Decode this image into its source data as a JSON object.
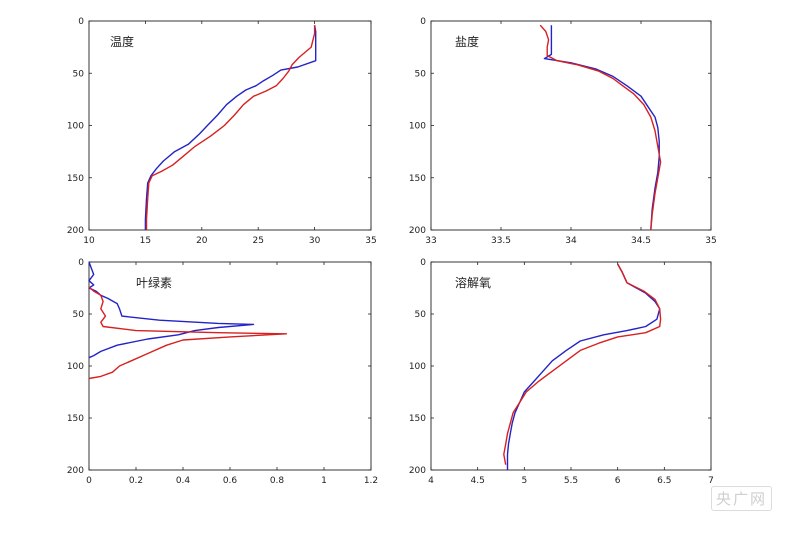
{
  "chart_data": [
    {
      "type": "line",
      "title": "温度",
      "xlim": [
        10,
        35
      ],
      "ylim": [
        0,
        200
      ],
      "y_inverted": true,
      "xticks": [
        "10",
        "15",
        "20",
        "25",
        "30",
        "35"
      ],
      "yticks": [
        "0",
        "50",
        "100",
        "150",
        "200"
      ],
      "series": [
        {
          "color": "#2323c8",
          "points": [
            [
              30.0,
              4
            ],
            [
              30.1,
              10
            ],
            [
              30.1,
              38
            ],
            [
              28.5,
              44
            ],
            [
              27.0,
              47
            ],
            [
              26.3,
              52
            ],
            [
              25.5,
              57
            ],
            [
              24.8,
              62
            ],
            [
              23.9,
              66
            ],
            [
              23.1,
              72
            ],
            [
              22.2,
              80
            ],
            [
              21.4,
              90
            ],
            [
              20.5,
              100
            ],
            [
              19.8,
              108
            ],
            [
              18.8,
              118
            ],
            [
              17.6,
              125
            ],
            [
              16.6,
              134
            ],
            [
              16.0,
              141
            ],
            [
              15.5,
              148
            ],
            [
              15.2,
              155
            ],
            [
              15.1,
              170
            ],
            [
              15.0,
              190
            ],
            [
              15.0,
              200
            ]
          ]
        },
        {
          "color": "#d82020",
          "points": [
            [
              30.0,
              4
            ],
            [
              30.0,
              12
            ],
            [
              29.7,
              25
            ],
            [
              28.6,
              35
            ],
            [
              28.0,
              42
            ],
            [
              27.7,
              48
            ],
            [
              27.2,
              55
            ],
            [
              26.6,
              62
            ],
            [
              25.7,
              67
            ],
            [
              24.6,
              72
            ],
            [
              23.7,
              80
            ],
            [
              22.9,
              90
            ],
            [
              22.0,
              100
            ],
            [
              20.8,
              110
            ],
            [
              19.4,
              120
            ],
            [
              18.3,
              130
            ],
            [
              17.4,
              138
            ],
            [
              16.4,
              144
            ],
            [
              15.6,
              148
            ],
            [
              15.3,
              155
            ],
            [
              15.2,
              170
            ],
            [
              15.1,
              190
            ],
            [
              15.1,
              200
            ]
          ]
        }
      ]
    },
    {
      "type": "line",
      "title": "盐度",
      "xlim": [
        33,
        35
      ],
      "ylim": [
        0,
        200
      ],
      "y_inverted": true,
      "xticks": [
        "33",
        "33.5",
        "34",
        "34.5",
        "35"
      ],
      "yticks": [
        "0",
        "50",
        "100",
        "150",
        "200"
      ],
      "series": [
        {
          "color": "#2323c8",
          "points": [
            [
              33.86,
              4
            ],
            [
              33.86,
              32
            ],
            [
              33.81,
              36
            ],
            [
              34.0,
              40
            ],
            [
              34.18,
              46
            ],
            [
              34.3,
              53
            ],
            [
              34.4,
              62
            ],
            [
              34.5,
              72
            ],
            [
              34.55,
              82
            ],
            [
              34.6,
              92
            ],
            [
              34.62,
              102
            ],
            [
              34.63,
              115
            ],
            [
              34.63,
              130
            ],
            [
              34.62,
              145
            ],
            [
              34.6,
              160
            ],
            [
              34.58,
              180
            ],
            [
              34.57,
              200
            ]
          ]
        },
        {
          "color": "#d82020",
          "points": [
            [
              33.78,
              4
            ],
            [
              33.82,
              10
            ],
            [
              33.84,
              18
            ],
            [
              33.83,
              25
            ],
            [
              33.83,
              33
            ],
            [
              33.9,
              38
            ],
            [
              34.05,
              42
            ],
            [
              34.2,
              48
            ],
            [
              34.3,
              55
            ],
            [
              34.37,
              62
            ],
            [
              34.45,
              70
            ],
            [
              34.52,
              80
            ],
            [
              34.57,
              92
            ],
            [
              34.6,
              105
            ],
            [
              34.62,
              120
            ],
            [
              34.64,
              135
            ],
            [
              34.62,
              150
            ],
            [
              34.6,
              165
            ],
            [
              34.58,
              185
            ],
            [
              34.57,
              200
            ]
          ]
        }
      ]
    },
    {
      "type": "line",
      "title": "叶绿素",
      "xlim": [
        0,
        1.2
      ],
      "ylim": [
        0,
        200
      ],
      "y_inverted": true,
      "xticks": [
        "0",
        "0.2",
        "0.4",
        "0.6",
        "0.8",
        "1",
        "1.2"
      ],
      "yticks": [
        "0",
        "50",
        "100",
        "150",
        "200"
      ],
      "series": [
        {
          "color": "#2323c8",
          "points": [
            [
              0.0,
              0
            ],
            [
              0.02,
              12
            ],
            [
              0.0,
              18
            ],
            [
              0.02,
              22
            ],
            [
              0.0,
              25
            ],
            [
              0.03,
              28
            ],
            [
              0.05,
              32
            ],
            [
              0.08,
              35
            ],
            [
              0.12,
              40
            ],
            [
              0.13,
              45
            ],
            [
              0.14,
              52
            ],
            [
              0.3,
              56
            ],
            [
              0.55,
              59
            ],
            [
              0.7,
              60
            ],
            [
              0.55,
              63
            ],
            [
              0.45,
              66
            ],
            [
              0.38,
              70
            ],
            [
              0.25,
              74
            ],
            [
              0.12,
              80
            ],
            [
              0.05,
              86
            ],
            [
              0.02,
              90
            ],
            [
              0.0,
              92
            ]
          ]
        },
        {
          "color": "#d82020",
          "points": [
            [
              0.0,
              24
            ],
            [
              0.02,
              28
            ],
            [
              0.05,
              32
            ],
            [
              0.06,
              38
            ],
            [
              0.05,
              45
            ],
            [
              0.07,
              52
            ],
            [
              0.05,
              58
            ],
            [
              0.06,
              62
            ],
            [
              0.2,
              66
            ],
            [
              0.55,
              68
            ],
            [
              0.84,
              69
            ],
            [
              0.6,
              72
            ],
            [
              0.4,
              75
            ],
            [
              0.33,
              80
            ],
            [
              0.25,
              88
            ],
            [
              0.18,
              95
            ],
            [
              0.13,
              100
            ],
            [
              0.1,
              106
            ],
            [
              0.05,
              110
            ],
            [
              0.0,
              112
            ]
          ]
        }
      ]
    },
    {
      "type": "line",
      "title": "溶解氧",
      "xlim": [
        4,
        7
      ],
      "ylim": [
        0,
        200
      ],
      "y_inverted": true,
      "xticks": [
        "4",
        "4.5",
        "5",
        "5.5",
        "6",
        "6.5",
        "7"
      ],
      "yticks": [
        "0",
        "50",
        "100",
        "150",
        "200"
      ],
      "series": [
        {
          "color": "#2323c8",
          "points": [
            [
              6.0,
              2
            ],
            [
              6.05,
              10
            ],
            [
              6.1,
              20
            ],
            [
              6.3,
              30
            ],
            [
              6.4,
              38
            ],
            [
              6.45,
              45
            ],
            [
              6.42,
              55
            ],
            [
              6.3,
              62
            ],
            [
              6.1,
              66
            ],
            [
              5.85,
              70
            ],
            [
              5.6,
              76
            ],
            [
              5.45,
              85
            ],
            [
              5.3,
              95
            ],
            [
              5.2,
              105
            ],
            [
              5.1,
              115
            ],
            [
              5.0,
              125
            ],
            [
              4.95,
              135
            ],
            [
              4.9,
              145
            ],
            [
              4.87,
              155
            ],
            [
              4.85,
              165
            ],
            [
              4.83,
              175
            ],
            [
              4.82,
              185
            ],
            [
              4.82,
              200
            ]
          ]
        },
        {
          "color": "#d82020",
          "points": [
            [
              6.0,
              2
            ],
            [
              6.05,
              10
            ],
            [
              6.1,
              20
            ],
            [
              6.28,
              28
            ],
            [
              6.4,
              36
            ],
            [
              6.45,
              45
            ],
            [
              6.46,
              55
            ],
            [
              6.45,
              62
            ],
            [
              6.3,
              68
            ],
            [
              6.0,
              72
            ],
            [
              5.8,
              78
            ],
            [
              5.6,
              85
            ],
            [
              5.45,
              95
            ],
            [
              5.3,
              105
            ],
            [
              5.15,
              115
            ],
            [
              5.02,
              125
            ],
            [
              4.95,
              135
            ],
            [
              4.88,
              145
            ],
            [
              4.85,
              155
            ],
            [
              4.82,
              165
            ],
            [
              4.8,
              175
            ],
            [
              4.78,
              185
            ],
            [
              4.8,
              195
            ]
          ]
        }
      ]
    }
  ],
  "watermark": "央广网"
}
